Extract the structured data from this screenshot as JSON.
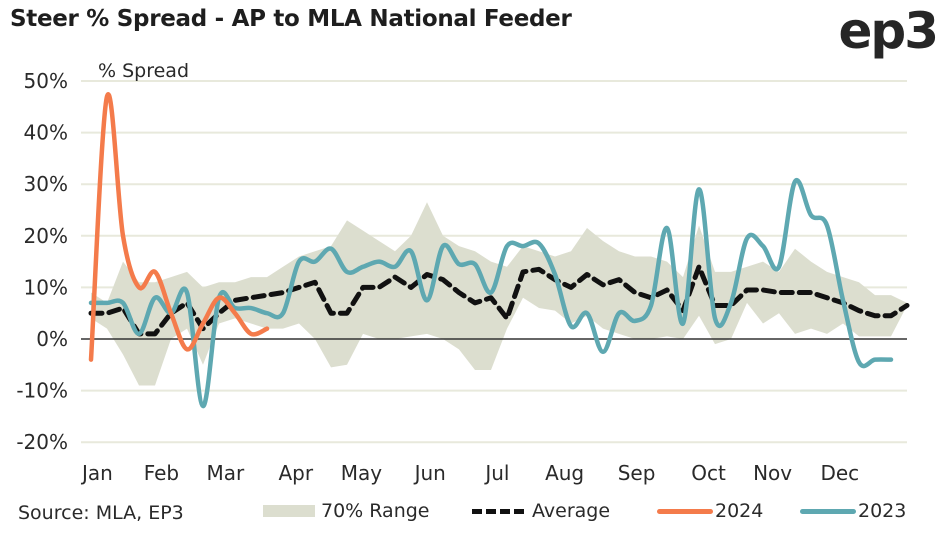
{
  "header": {
    "title": "Steer % Spread - AP to MLA National Feeder",
    "logo": "ep3"
  },
  "source": "Source: MLA, EP3",
  "colors": {
    "band": "#dcdecf",
    "average": "#111111",
    "s2024": "#f47b4b",
    "s2023": "#5ea8b1",
    "grid": "#e8e9dc",
    "zero": "#333333"
  },
  "legend": [
    {
      "key": "band",
      "label": "70% Range"
    },
    {
      "key": "average",
      "label": "Average"
    },
    {
      "key": "s2024",
      "label": "2024"
    },
    {
      "key": "s2023",
      "label": "2023"
    }
  ],
  "chart_data": {
    "type": "line",
    "title": "Steer % Spread - AP to MLA National Feeder",
    "ylabel": "% Spread",
    "xlabel": "",
    "ylim": [
      -20,
      50
    ],
    "yticks": [
      -20,
      -10,
      0,
      10,
      20,
      30,
      40,
      50
    ],
    "ytick_labels": [
      "-20%",
      "-10%",
      "0%",
      "10%",
      "20%",
      "30%",
      "40%",
      "50%"
    ],
    "x_unit": "week of year (0-51)",
    "xlim": [
      0,
      51
    ],
    "month_ticks": [
      {
        "label": "Jan",
        "week": 0.4
      },
      {
        "label": "Feb",
        "week": 4.4
      },
      {
        "label": "Mar",
        "week": 8.4
      },
      {
        "label": "Apr",
        "week": 12.8
      },
      {
        "label": "May",
        "week": 16.9
      },
      {
        "label": "Jun",
        "week": 21.2
      },
      {
        "label": "Jul",
        "week": 25.4
      },
      {
        "label": "Aug",
        "week": 29.6
      },
      {
        "label": "Sep",
        "week": 34.1
      },
      {
        "label": "Oct",
        "week": 38.6
      },
      {
        "label": "Nov",
        "week": 42.6
      },
      {
        "label": "Dec",
        "week": 46.8
      }
    ],
    "grid": true,
    "legend_position": "bottom",
    "series": [
      {
        "name": "70% Range",
        "kind": "band",
        "upper": [
          9,
          7,
          15,
          11,
          11,
          12,
          13,
          10,
          11,
          11,
          12,
          12,
          14,
          16,
          17,
          18,
          23,
          21,
          19,
          17,
          20,
          26.5,
          20,
          18,
          17,
          15,
          14,
          18,
          17,
          16,
          17,
          21.5,
          19,
          17,
          16,
          16,
          15,
          12,
          22,
          13,
          13,
          14,
          15,
          13,
          17.5,
          15,
          13,
          12,
          11,
          8.5,
          8.5,
          7
        ],
        "lower": [
          4,
          2,
          -3,
          -9,
          -9,
          0,
          2,
          -5,
          3,
          4,
          3,
          2,
          2,
          3,
          0,
          -5.5,
          -5,
          1,
          0,
          0,
          0.5,
          1,
          0,
          -2,
          -6,
          -6,
          2,
          8,
          6,
          5.5,
          3,
          4.5,
          2,
          1,
          0,
          0,
          0.5,
          0,
          4.5,
          -1,
          0,
          7,
          3,
          5,
          1,
          2,
          1,
          3,
          0.5,
          0.5,
          0.5,
          6.5
        ]
      },
      {
        "name": "Average",
        "kind": "dashed",
        "values": [
          5,
          5,
          6,
          1,
          1,
          5,
          7,
          2,
          5,
          7.5,
          8,
          8.5,
          9,
          10,
          11,
          5,
          5,
          10,
          10,
          12,
          10,
          12.5,
          11.5,
          9,
          7,
          8,
          4,
          13,
          13.5,
          11.5,
          10,
          12.5,
          10.5,
          11.5,
          9,
          8,
          9.5,
          5.5,
          14,
          6.5,
          6.5,
          9.5,
          9.5,
          9,
          9,
          9,
          8,
          7,
          5.5,
          4.5,
          4.5,
          6.5
        ]
      },
      {
        "name": "2024",
        "kind": "line",
        "values": [
          -4,
          47,
          20,
          10,
          13,
          5,
          -2,
          3,
          8,
          5,
          1,
          2
        ]
      },
      {
        "name": "2023",
        "kind": "line",
        "values": [
          7,
          7,
          7,
          1,
          8,
          5,
          9,
          -13,
          8,
          6,
          6,
          5,
          5,
          15,
          15,
          17.5,
          13,
          14,
          15,
          14,
          17,
          7.5,
          18,
          14.5,
          14.5,
          9,
          18,
          18,
          18.5,
          12.5,
          2.5,
          5,
          -2.5,
          5,
          3.5,
          6.5,
          21.5,
          3,
          29,
          4,
          7,
          19.5,
          18,
          14,
          30.5,
          24,
          22,
          7.5,
          -4.5,
          -4,
          -4
        ]
      }
    ]
  }
}
